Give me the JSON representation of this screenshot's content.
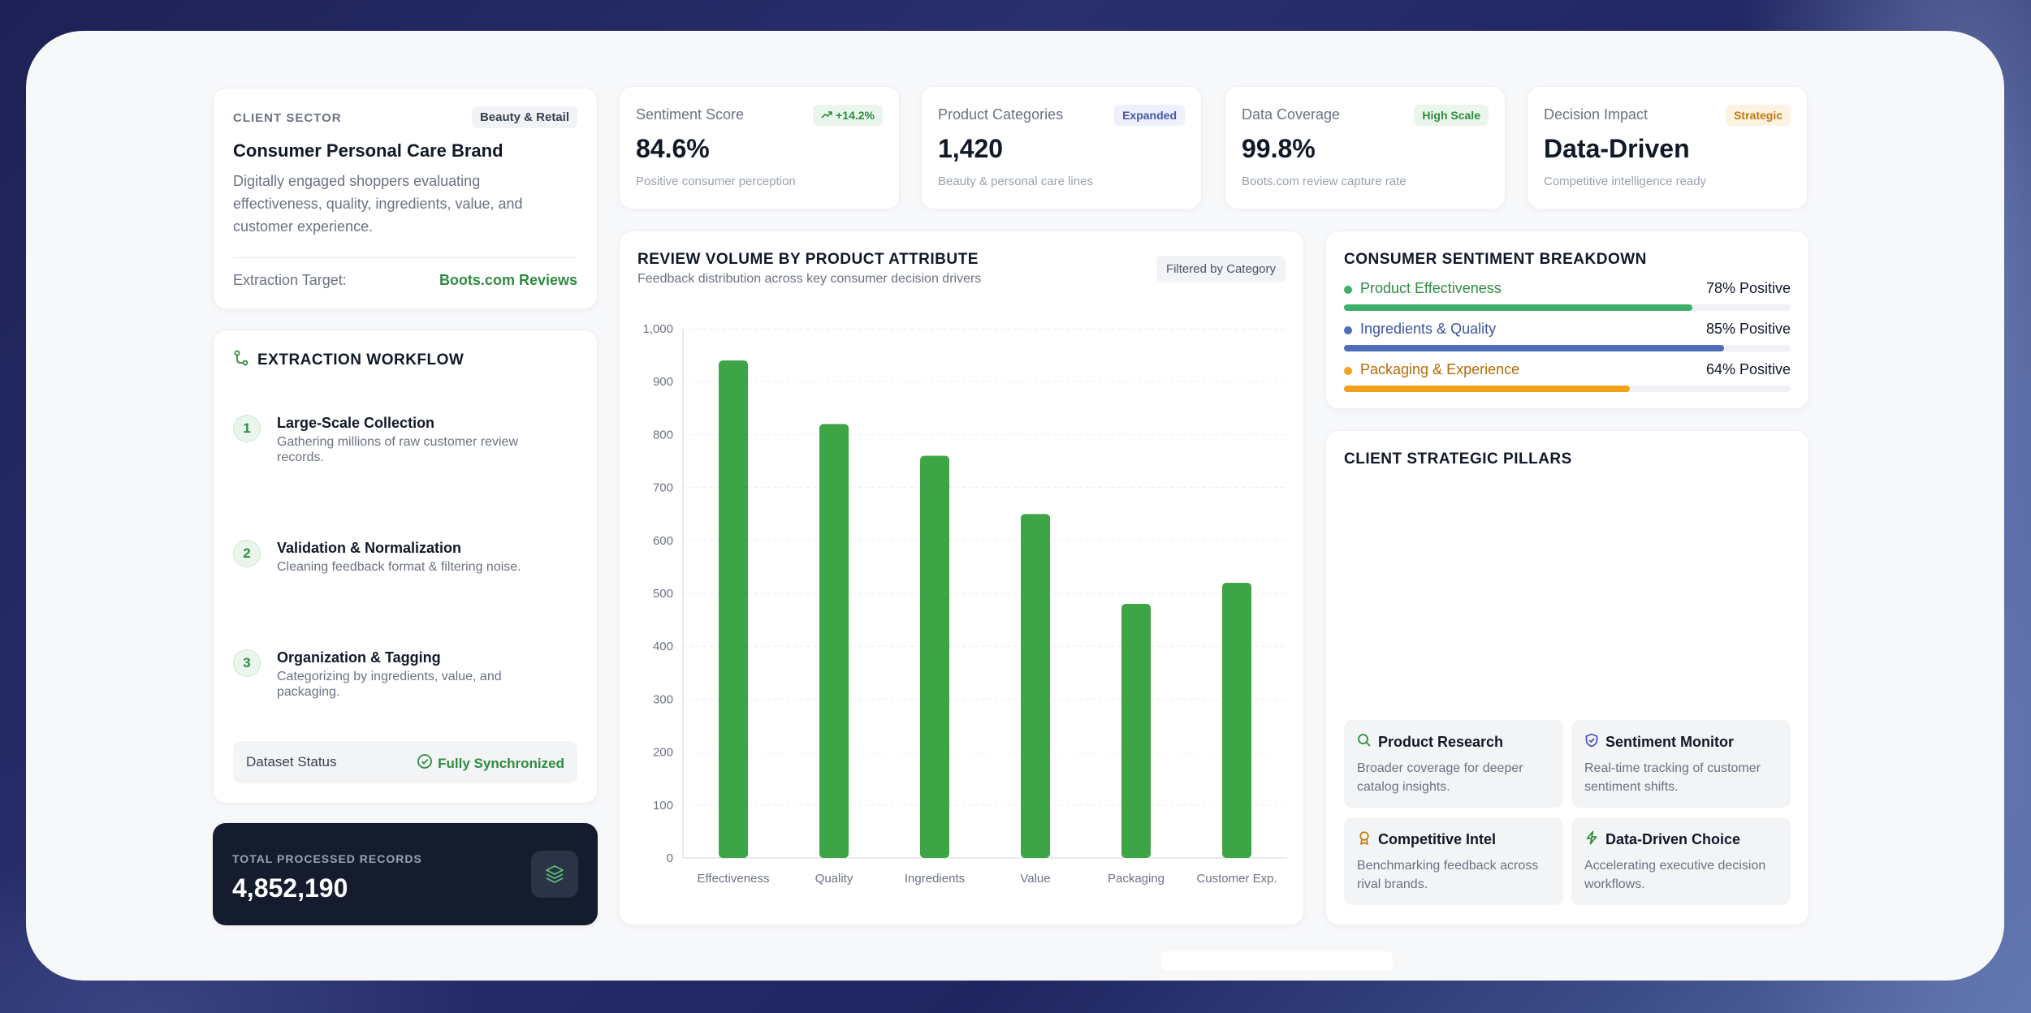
{
  "client": {
    "eyebrow": "CLIENT SECTOR",
    "badge": "Beauty & Retail",
    "title": "Consumer Personal Care Brand",
    "description": "Digitally engaged shoppers evaluating effectiveness, quality, ingredients, value, and customer experience.",
    "target_label": "Extraction Target:",
    "target_value": "Boots.com Reviews"
  },
  "workflow": {
    "title": "EXTRACTION WORKFLOW",
    "icon": "workflow-icon",
    "steps": [
      {
        "num": "1",
        "title": "Large-Scale Collection",
        "desc": "Gathering millions of raw customer review records."
      },
      {
        "num": "2",
        "title": "Validation & Normalization",
        "desc": "Cleaning feedback format & filtering noise."
      },
      {
        "num": "3",
        "title": "Organization & Tagging",
        "desc": "Categorizing by ingredients, value, and packaging."
      }
    ],
    "status_label": "Dataset Status",
    "status_value": "Fully Synchronized"
  },
  "total": {
    "label": "TOTAL PROCESSED RECORDS",
    "value": "4,852,190",
    "icon": "layers-icon"
  },
  "kpis": [
    {
      "label": "Sentiment Score",
      "badge": "+14.2%",
      "value": "84.6%",
      "sub": "Positive consumer perception",
      "badge_color": "#2e8b3f",
      "badge_bg": "#eaf6ec"
    },
    {
      "label": "Product Categories",
      "badge": "Expanded",
      "value": "1,420",
      "sub": "Beauty & personal care lines",
      "badge_color": "#4456a6",
      "badge_bg": "#eef0fb"
    },
    {
      "label": "Data Coverage",
      "badge": "High Scale",
      "value": "99.8%",
      "sub": "Boots.com review capture rate",
      "badge_color": "#2e8b3f",
      "badge_bg": "#eaf6ec"
    },
    {
      "label": "Decision Impact",
      "badge": "Strategic",
      "value": "Data-Driven",
      "sub": "Competitive intelligence ready",
      "badge_color": "#c27a0e",
      "badge_bg": "#fdf3e3"
    }
  ],
  "chart": {
    "title": "REVIEW VOLUME BY PRODUCT ATTRIBUTE",
    "subtitle": "Feedback distribution across key consumer decision drivers",
    "filter": "Filtered by Category"
  },
  "chart_data": {
    "type": "bar",
    "categories": [
      "Effectiveness",
      "Quality",
      "Ingredients",
      "Value",
      "Packaging",
      "Customer Exp."
    ],
    "values": [
      940,
      820,
      760,
      650,
      480,
      520
    ],
    "title": "REVIEW VOLUME BY PRODUCT ATTRIBUTE",
    "xlabel": "",
    "ylabel": "",
    "ylim": [
      0,
      1000
    ],
    "yticks": [
      "0",
      "100",
      "200",
      "300",
      "400",
      "500",
      "600",
      "700",
      "800",
      "900",
      "1,000"
    ],
    "color": "#3ea547",
    "grid": true
  },
  "sentiment": {
    "title": "CONSUMER SENTIMENT BREAKDOWN",
    "rows": [
      {
        "name": "Product Effectiveness",
        "pct": "78% Positive",
        "value": 0.78,
        "color": "#3fb06b",
        "text_color": "#2e8b3f"
      },
      {
        "name": "Ingredients & Quality",
        "pct": "85% Positive",
        "value": 0.85,
        "color": "#4f6db8",
        "text_color": "#3b55a0"
      },
      {
        "name": "Packaging & Experience",
        "pct": "64% Positive",
        "value": 0.64,
        "color": "#f0a21b",
        "text_color": "#b36b06"
      }
    ]
  },
  "pillars": {
    "title": "CLIENT STRATEGIC PILLARS",
    "items": [
      {
        "title": "Product Research",
        "desc": "Broader coverage for deeper catalog insights.",
        "icon": "search-icon"
      },
      {
        "title": "Sentiment Monitor",
        "desc": "Real-time tracking of customer sentiment shifts.",
        "icon": "shield-icon"
      },
      {
        "title": "Competitive Intel",
        "desc": "Benchmarking feedback across rival brands.",
        "icon": "award-icon"
      },
      {
        "title": "Data-Driven Choice",
        "desc": "Accelerating executive decision workflows.",
        "icon": "lightning-icon"
      }
    ]
  }
}
